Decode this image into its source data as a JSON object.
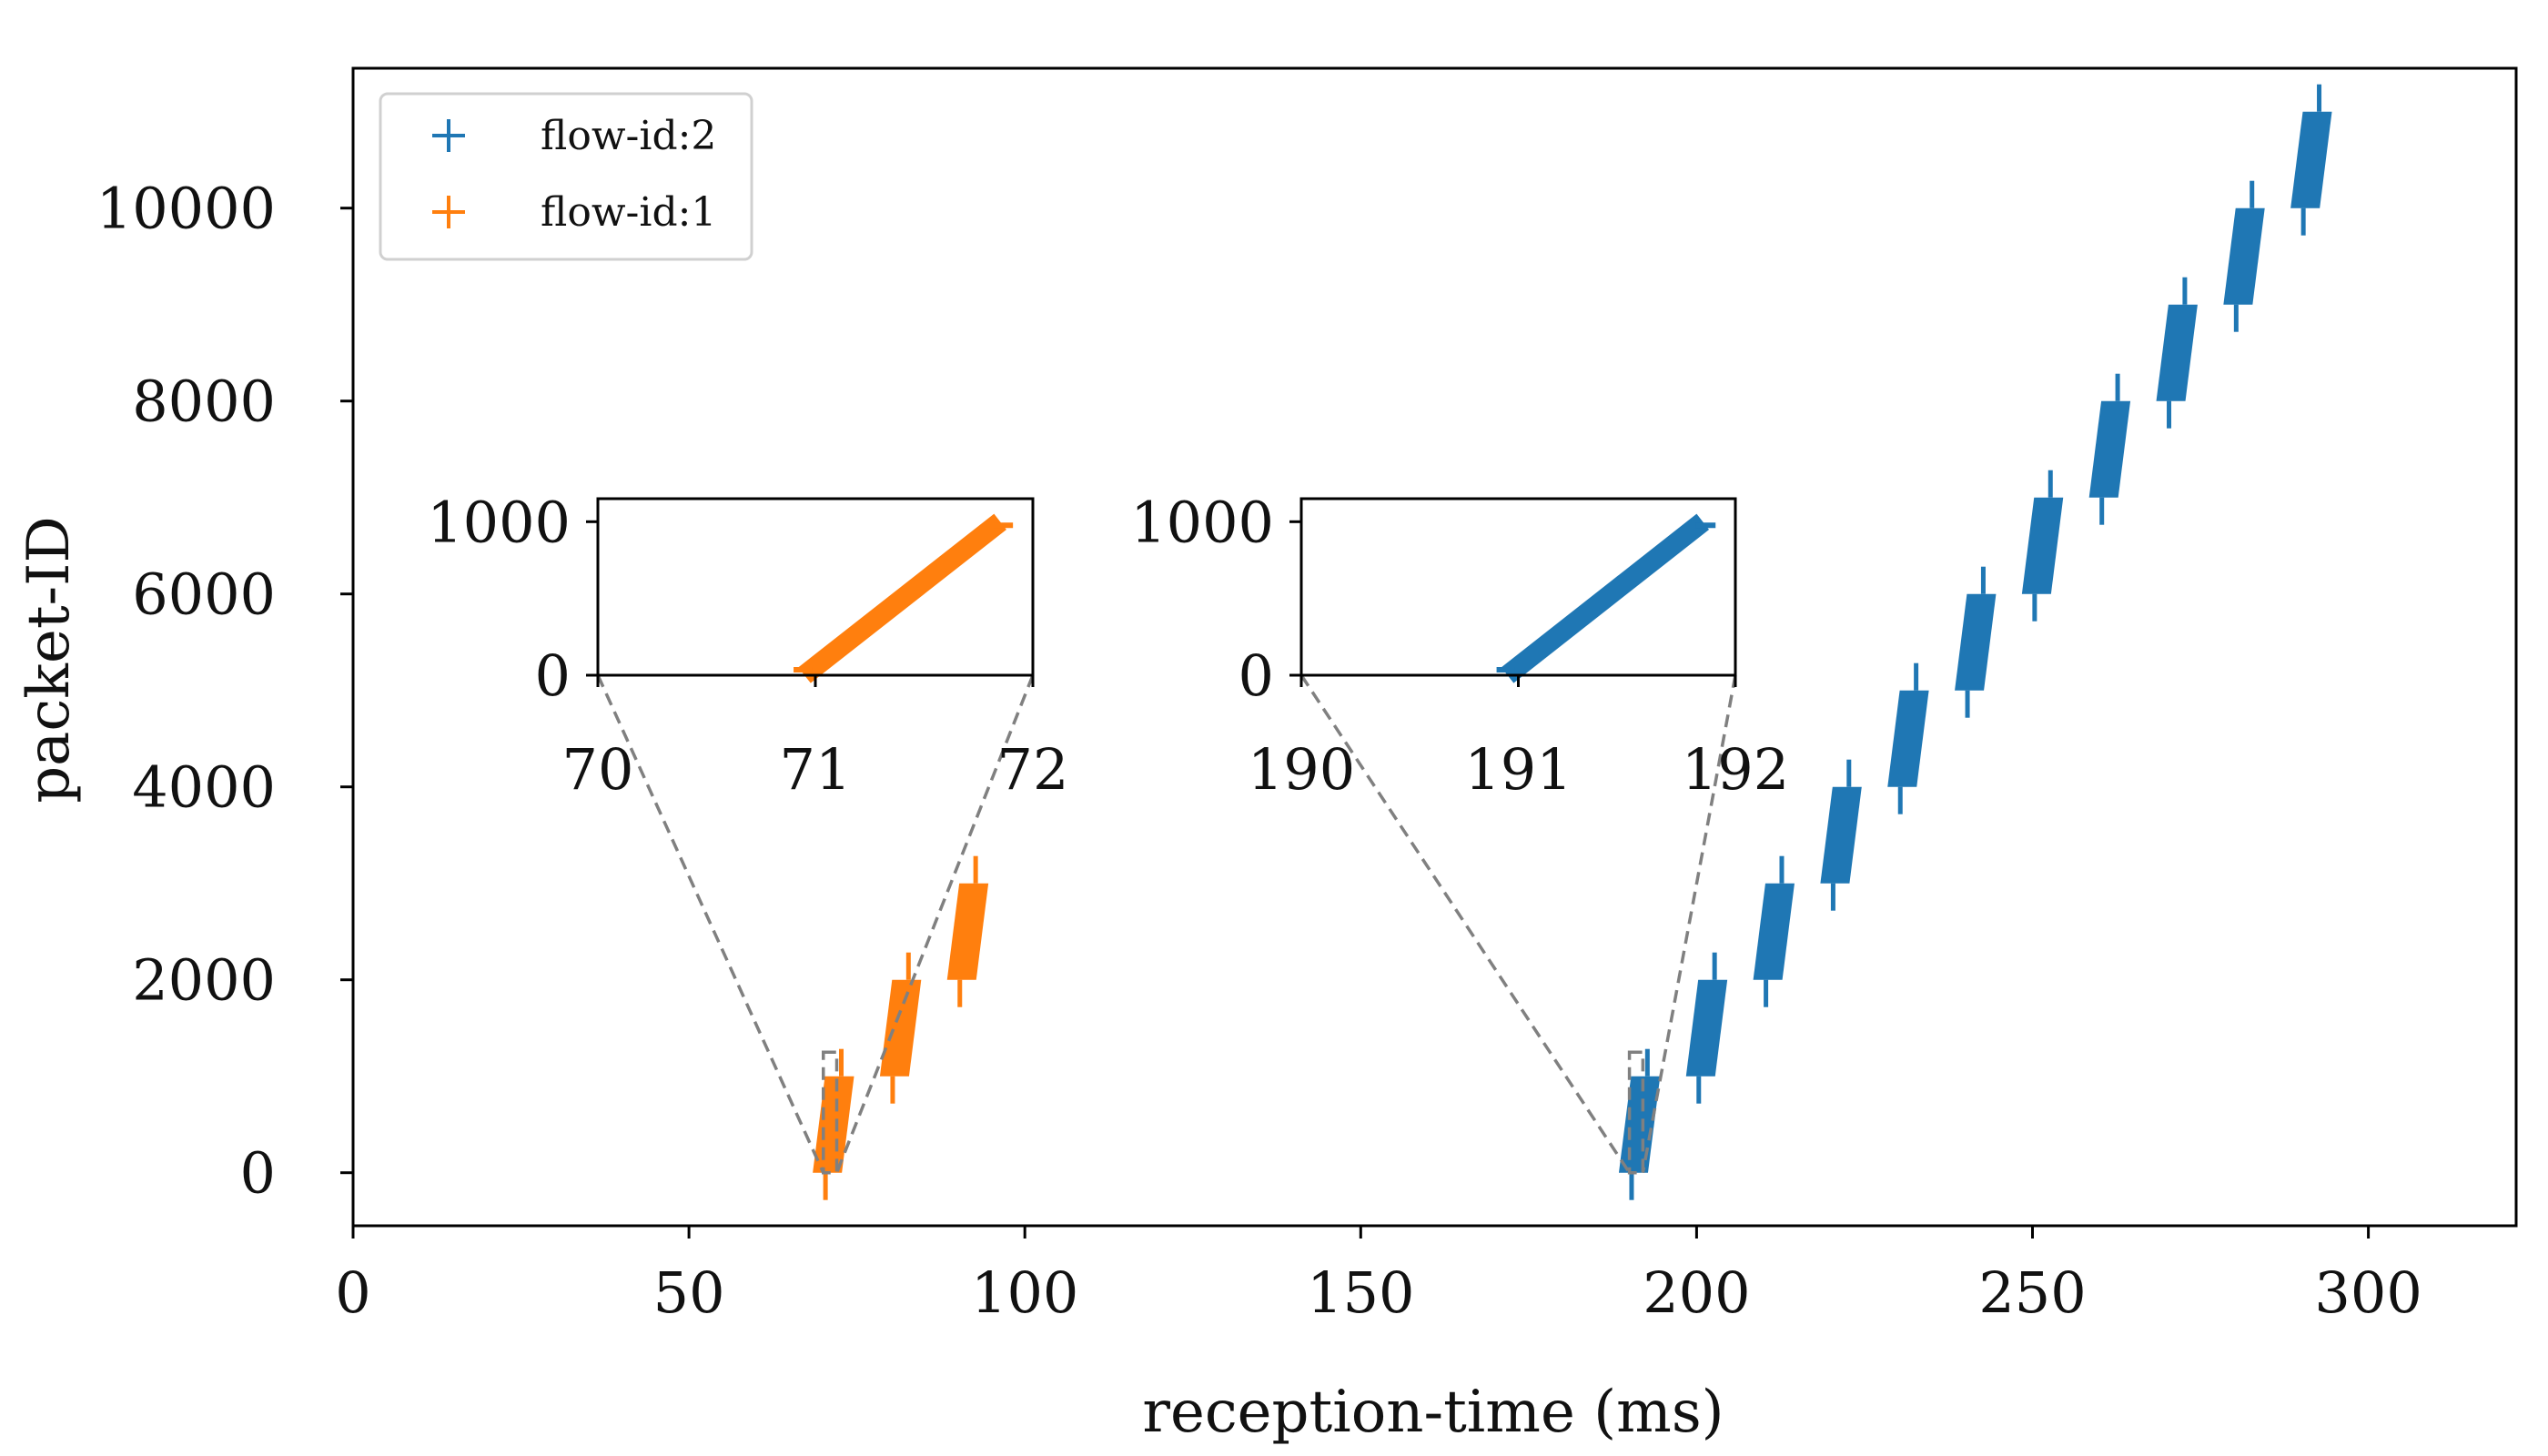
{
  "chart_data": {
    "type": "scatter",
    "xlabel": "reception-time (ms)",
    "ylabel": "packet-ID",
    "xlim": [
      0,
      322
    ],
    "ylim": [
      -550,
      11450
    ],
    "xticks": [
      0,
      50,
      100,
      150,
      200,
      250,
      300
    ],
    "yticks": [
      0,
      2000,
      4000,
      6000,
      8000,
      10000
    ],
    "marker": "+",
    "legend": {
      "position": "top-left"
    },
    "series": [
      {
        "name": "flow-id:2",
        "color": "#1f77b4",
        "bursts": [
          {
            "t_start": 191,
            "t_end": 192,
            "id_start": 0,
            "id_end": 1000
          },
          {
            "t_start": 201,
            "t_end": 202,
            "id_start": 1000,
            "id_end": 2000
          },
          {
            "t_start": 211,
            "t_end": 212,
            "id_start": 2000,
            "id_end": 3000
          },
          {
            "t_start": 221,
            "t_end": 222,
            "id_start": 3000,
            "id_end": 4000
          },
          {
            "t_start": 231,
            "t_end": 232,
            "id_start": 4000,
            "id_end": 5000
          },
          {
            "t_start": 241,
            "t_end": 242,
            "id_start": 5000,
            "id_end": 6000
          },
          {
            "t_start": 251,
            "t_end": 252,
            "id_start": 6000,
            "id_end": 7000
          },
          {
            "t_start": 261,
            "t_end": 262,
            "id_start": 7000,
            "id_end": 8000
          },
          {
            "t_start": 271,
            "t_end": 272,
            "id_start": 8000,
            "id_end": 9000
          },
          {
            "t_start": 281,
            "t_end": 282,
            "id_start": 9000,
            "id_end": 10000
          },
          {
            "t_start": 291,
            "t_end": 292,
            "id_start": 10000,
            "id_end": 11000
          }
        ]
      },
      {
        "name": "flow-id:1",
        "color": "#ff7f0e",
        "bursts": [
          {
            "t_start": 71,
            "t_end": 72,
            "id_start": 0,
            "id_end": 1000
          },
          {
            "t_start": 81,
            "t_end": 82,
            "id_start": 1000,
            "id_end": 2000
          },
          {
            "t_start": 91,
            "t_end": 92,
            "id_start": 2000,
            "id_end": 3000
          }
        ]
      }
    ],
    "insets": [
      {
        "series": "flow-id:1",
        "xlim": [
          70,
          72
        ],
        "ylim": [
          0,
          1150
        ],
        "xticks": [
          70,
          71,
          72
        ],
        "yticks": [
          0,
          1000
        ],
        "zoom_region": {
          "x": [
            70,
            72
          ],
          "y": [
            0,
            1250
          ]
        },
        "points": [
          [
            70.95,
            0
          ],
          [
            71.85,
            1000
          ]
        ]
      },
      {
        "series": "flow-id:2",
        "xlim": [
          190,
          192
        ],
        "ylim": [
          0,
          1150
        ],
        "xticks": [
          190,
          191,
          192
        ],
        "yticks": [
          0,
          1000
        ],
        "zoom_region": {
          "x": [
            190,
            192
          ],
          "y": [
            0,
            1250
          ]
        },
        "points": [
          [
            190.95,
            0
          ],
          [
            191.85,
            1000
          ]
        ]
      }
    ]
  }
}
